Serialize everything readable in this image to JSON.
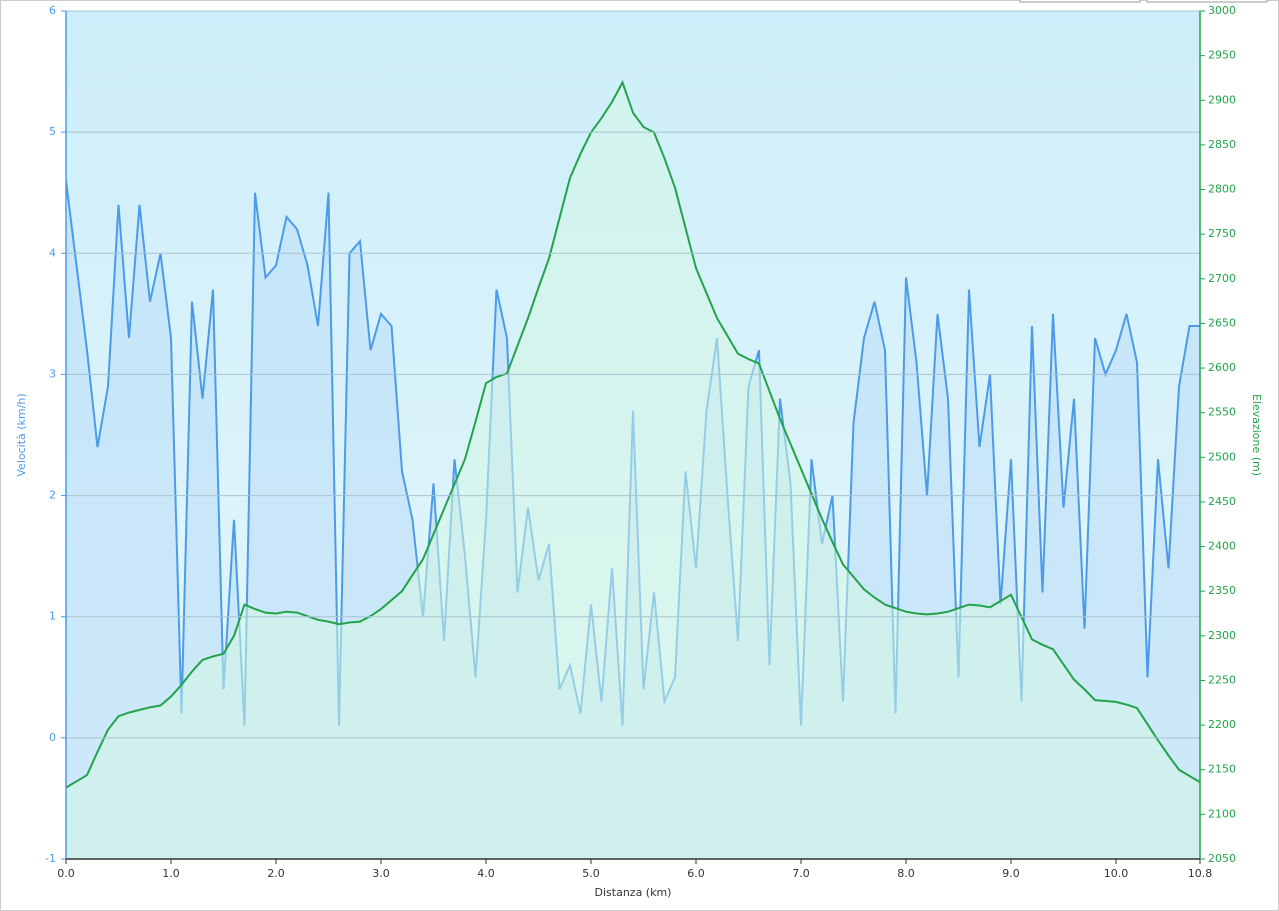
{
  "chart_data": {
    "type": "area",
    "x_label": "Distanza  (km)",
    "y_label": "Velocità (km/h)",
    "y2_label": "Elevazione (m)",
    "x": [
      0,
      0.1,
      0.2,
      0.3,
      0.4,
      0.5,
      0.6,
      0.7,
      0.8,
      0.9,
      1,
      1.1,
      1.2,
      1.3,
      1.4,
      1.5,
      1.6,
      1.7,
      1.8,
      1.9,
      2,
      2.1,
      2.2,
      2.3,
      2.4,
      2.5,
      2.6,
      2.7,
      2.8,
      2.9,
      3,
      3.1,
      3.2,
      3.3,
      3.4,
      3.5,
      3.6,
      3.7,
      3.8,
      3.9,
      4,
      4.1,
      4.2,
      4.3,
      4.4,
      4.5,
      4.6,
      4.7,
      4.8,
      4.9,
      5,
      5.1,
      5.2,
      5.3,
      5.4,
      5.5,
      5.6,
      5.7,
      5.8,
      5.9,
      6,
      6.1,
      6.2,
      6.3,
      6.4,
      6.5,
      6.6,
      6.7,
      6.8,
      6.9,
      7,
      7.1,
      7.2,
      7.3,
      7.4,
      7.5,
      7.6,
      7.7,
      7.8,
      7.9,
      8,
      8.1,
      8.2,
      8.3,
      8.4,
      8.5,
      8.6,
      8.7,
      8.8,
      8.9,
      9,
      9.1,
      9.2,
      9.3,
      9.4,
      9.5,
      9.6,
      9.7,
      9.8,
      9.9,
      10,
      10.1,
      10.2,
      10.3,
      10.4,
      10.5,
      10.6,
      10.7,
      10.8
    ],
    "series": [
      {
        "name": "Velocità",
        "color": "#4c9be8",
        "fill": "#b9dcf7",
        "values": [
          4.6,
          3.9,
          3.2,
          2.4,
          2.9,
          4.4,
          3.3,
          4.4,
          3.6,
          4.0,
          3.3,
          0.2,
          3.6,
          2.8,
          3.7,
          0.4,
          1.8,
          0.1,
          4.5,
          3.8,
          3.9,
          4.3,
          4.2,
          3.9,
          3.4,
          4.5,
          0.1,
          4.0,
          4.1,
          3.2,
          3.5,
          3.4,
          2.2,
          1.8,
          1.0,
          2.1,
          0.8,
          2.3,
          1.5,
          0.5,
          1.8,
          3.7,
          3.3,
          1.2,
          1.9,
          1.3,
          1.6,
          0.4,
          0.6,
          0.2,
          1.1,
          0.3,
          1.4,
          0.1,
          2.7,
          0.4,
          1.2,
          0.3,
          0.5,
          2.2,
          1.4,
          2.7,
          3.3,
          2.0,
          0.8,
          2.9,
          3.2,
          0.6,
          2.8,
          2.1,
          0.1,
          2.3,
          1.6,
          2.0,
          0.3,
          2.6,
          3.3,
          3.6,
          3.2,
          0.2,
          3.8,
          3.1,
          2.0,
          3.5,
          2.8,
          0.5,
          3.7,
          2.4,
          3.0,
          1.1,
          2.3,
          0.3,
          3.4,
          1.2,
          3.5,
          1.9,
          2.8,
          0.9,
          3.3,
          3.0,
          3.2,
          3.5,
          3.1,
          0.5,
          2.3,
          1.4,
          2.9,
          3.4,
          3.4
        ]
      },
      {
        "name": "Elevazione",
        "color": "#22a34a",
        "fill": "#d4f5e4",
        "axis": "y2",
        "values": [
          2130,
          2137,
          2144,
          2170,
          2195,
          2210,
          2214,
          2217,
          2220,
          2222,
          2232,
          2245,
          2260,
          2273,
          2277,
          2280,
          2300,
          2335,
          2330,
          2326,
          2325,
          2327,
          2326,
          2322,
          2318,
          2316,
          2313,
          2315,
          2316,
          2322,
          2330,
          2340,
          2350,
          2368,
          2386,
          2414,
          2442,
          2470,
          2498,
          2540,
          2583,
          2590,
          2594,
          2625,
          2656,
          2690,
          2723,
          2768,
          2813,
          2840,
          2864,
          2880,
          2898,
          2920,
          2886,
          2870,
          2864,
          2835,
          2802,
          2757,
          2712,
          2684,
          2656,
          2636,
          2616,
          2610,
          2605,
          2574,
          2543,
          2515,
          2487,
          2459,
          2431,
          2405,
          2380,
          2366,
          2352,
          2343,
          2335,
          2331,
          2327,
          2325,
          2324,
          2325,
          2327,
          2331,
          2335,
          2334,
          2332,
          2339,
          2346,
          2321,
          2296,
          2290,
          2285,
          2268,
          2251,
          2240,
          2228,
          2227,
          2226,
          2223,
          2219,
          2201,
          2183,
          2166,
          2150,
          2143,
          2136
        ]
      }
    ],
    "xlim": [
      0,
      10.8
    ],
    "xticks": [
      {
        "value": 0,
        "label": "0.0"
      },
      {
        "value": 1,
        "label": "1.0"
      },
      {
        "value": 2,
        "label": "2.0"
      },
      {
        "value": 3,
        "label": "3.0"
      },
      {
        "value": 4,
        "label": "4.0"
      },
      {
        "value": 5,
        "label": "5.0"
      },
      {
        "value": 6,
        "label": "6.0"
      },
      {
        "value": 7,
        "label": "7.0"
      },
      {
        "value": 8,
        "label": "8.0"
      },
      {
        "value": 9,
        "label": "9.0"
      },
      {
        "value": 10,
        "label": "10.0"
      },
      10.8
    ],
    "ylim": [
      -1,
      6
    ],
    "yticks": [
      -1,
      0,
      1,
      2,
      3,
      4,
      5,
      6
    ],
    "y2lim": [
      2050,
      3000
    ],
    "y2ticks": [
      2050,
      2100,
      2150,
      2200,
      2250,
      2300,
      2350,
      2400,
      2450,
      2500,
      2550,
      2600,
      2650,
      2700,
      2750,
      2800,
      2850,
      2900,
      2950,
      3000
    ],
    "grid": true,
    "y_color": "#4c9be8",
    "y2_color": "#22a34a"
  }
}
